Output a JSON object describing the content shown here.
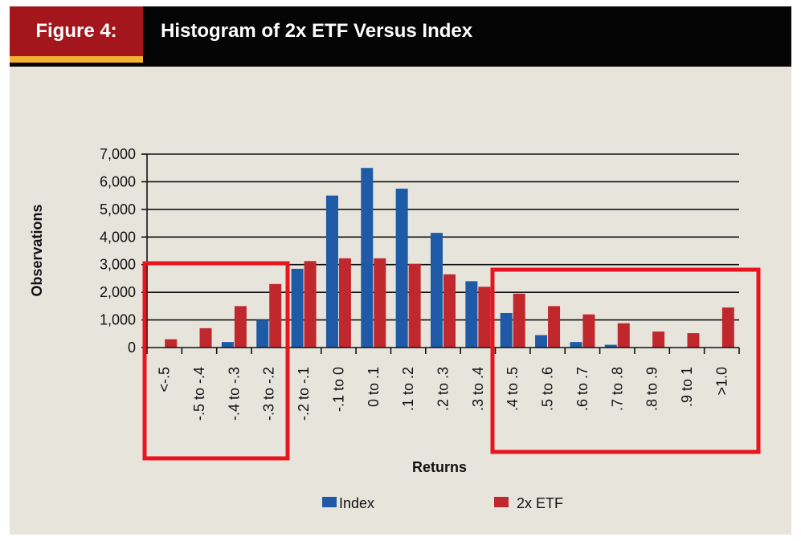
{
  "figure": {
    "label": "Figure 4:",
    "title": "Histogram of 2x ETF Versus Index"
  },
  "colors": {
    "header_bg": "#050505",
    "label_bg": "#a3161c",
    "underline": "#f3b233",
    "panel_bg": "#e7e4dc",
    "highlight_box": "#e8141e"
  },
  "chart_data": {
    "type": "bar",
    "title": "Histogram of 2x ETF Versus Index",
    "xlabel": "Returns",
    "ylabel": "Observations",
    "ylim": [
      0,
      7000
    ],
    "yticks": [
      0,
      1000,
      2000,
      3000,
      4000,
      5000,
      6000,
      7000
    ],
    "ytick_labels": [
      "0",
      "1,000",
      "2,000",
      "3,000",
      "4,000",
      "5,000",
      "6,000",
      "7,000"
    ],
    "categories": [
      "<-.5",
      "-.5 to -.4",
      "-.4 to -.3",
      "-.3 to -.2",
      "-.2 to -.1",
      "-.1 to 0",
      "0 to .1",
      ".1 to .2",
      ".2 to .3",
      ".3 to .4",
      ".4 to .5",
      ".5 to .6",
      ".6 to .7",
      ".7 to .8",
      ".8 to .9",
      ".9 to 1",
      ">1.0"
    ],
    "series": [
      {
        "name": "Index",
        "color": "#1f5aa6",
        "values": [
          0,
          0,
          200,
          1000,
          2850,
          5500,
          6500,
          5750,
          4150,
          2400,
          1250,
          450,
          200,
          100,
          0,
          0,
          0
        ]
      },
      {
        "name": "2x ETF",
        "color": "#c0282e",
        "values": [
          300,
          700,
          1500,
          2300,
          3130,
          3230,
          3230,
          3030,
          2650,
          2200,
          1950,
          1500,
          1200,
          880,
          580,
          520,
          1450
        ]
      }
    ],
    "grid": true,
    "legend_position": "bottom-center",
    "highlight_boxes": [
      {
        "from_category": "<-.5",
        "to_category": "-.3 to -.2"
      },
      {
        "from_category": ".4 to .5",
        "to_category": ">1.0"
      }
    ]
  }
}
